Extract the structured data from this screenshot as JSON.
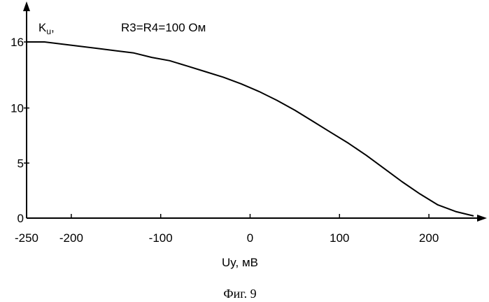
{
  "chart_data": {
    "type": "line",
    "title": "",
    "annotation": "R3=R4=100 Ом",
    "ylabel": "K",
    "ylabel_subscript": "u",
    "ylabel_suffix": ",",
    "xlabel": "Uy, мВ",
    "caption": "Фиг. 9",
    "xlim": [
      -250,
      255
    ],
    "ylim": [
      0,
      16
    ],
    "x_ticks": [
      -250,
      -200,
      -100,
      0,
      100,
      200
    ],
    "y_ticks": [
      0,
      5,
      10,
      16
    ],
    "grid": false,
    "series": [
      {
        "color": "#000000",
        "x": [
          -250,
          -230,
          -210,
          -190,
          -170,
          -150,
          -130,
          -110,
          -90,
          -70,
          -50,
          -30,
          -10,
          10,
          30,
          50,
          70,
          90,
          110,
          130,
          150,
          170,
          190,
          210,
          230,
          250
        ],
        "y": [
          16,
          16,
          15.8,
          15.6,
          15.4,
          15.2,
          15,
          14.6,
          14.3,
          13.8,
          13.3,
          12.8,
          12.2,
          11.5,
          10.7,
          9.8,
          8.8,
          7.8,
          6.8,
          5.7,
          4.5,
          3.3,
          2.2,
          1.2,
          0.6,
          0.2
        ]
      }
    ]
  }
}
